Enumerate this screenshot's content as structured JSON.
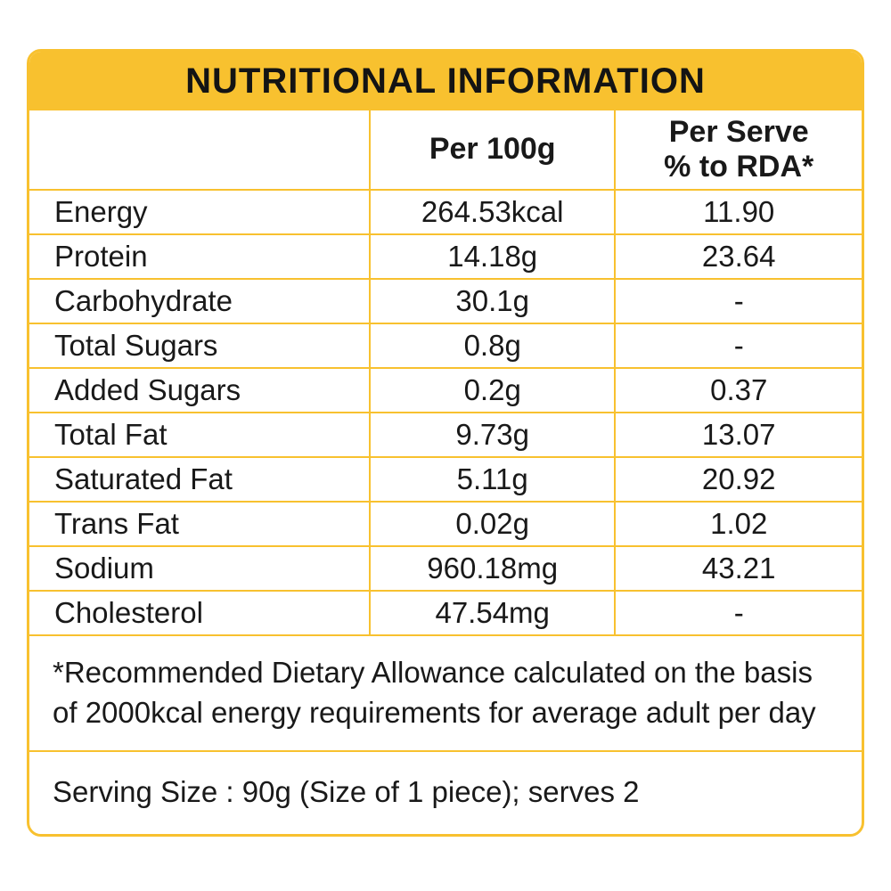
{
  "header": {
    "title": "NUTRITIONAL INFORMATION"
  },
  "columns": {
    "nutrient": "",
    "per_100g": "Per 100g",
    "per_serve_line1": "Per Serve",
    "per_serve_line2": "% to RDA*"
  },
  "table": {
    "rows": [
      {
        "name": "Energy",
        "per100g": "264.53kcal",
        "rda": "11.90"
      },
      {
        "name": "Protein",
        "per100g": "14.18g",
        "rda": "23.64"
      },
      {
        "name": "Carbohydrate",
        "per100g": "30.1g",
        "rda": "-"
      },
      {
        "name": "Total Sugars",
        "per100g": "0.8g",
        "rda": "-"
      },
      {
        "name": "Added Sugars",
        "per100g": "0.2g",
        "rda": "0.37"
      },
      {
        "name": "Total Fat",
        "per100g": "9.73g",
        "rda": "13.07"
      },
      {
        "name": "Saturated Fat",
        "per100g": "5.11g",
        "rda": "20.92"
      },
      {
        "name": "Trans Fat",
        "per100g": "0.02g",
        "rda": "1.02"
      },
      {
        "name": "Sodium",
        "per100g": "960.18mg",
        "rda": "43.21"
      },
      {
        "name": "Cholesterol",
        "per100g": "47.54mg",
        "rda": "-"
      }
    ]
  },
  "footnotes": {
    "rda_note": "*Recommended Dietary Allowance calculated on the basis of 2000kcal energy requirements for average adult per day",
    "serving_size": "Serving Size : 90g (Size of 1 piece); serves 2"
  },
  "colors": {
    "accent": "#F8C12F",
    "text": "#191919",
    "background": "#FFFFFF"
  }
}
